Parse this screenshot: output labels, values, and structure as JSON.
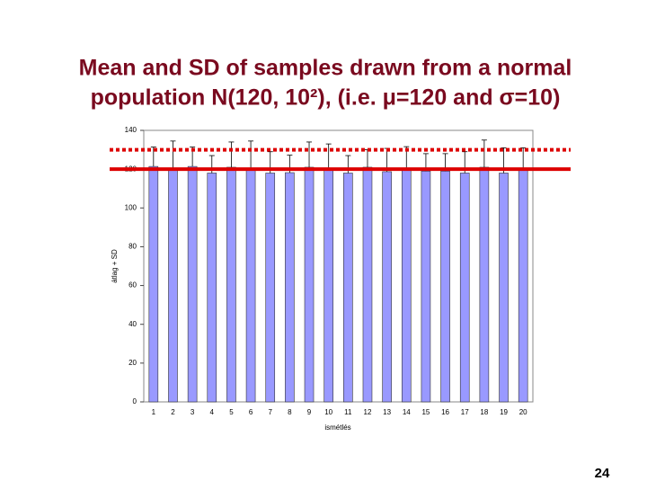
{
  "chart_data": {
    "type": "bar",
    "title_lines": [
      "Mean and SD of samples drawn from a normal",
      "population N(120, 10²), (i.e. μ=120 and σ=10)"
    ],
    "xlabel": "ismétlés",
    "ylabel": "átlag + SD",
    "categories": [
      "1",
      "2",
      "3",
      "4",
      "5",
      "6",
      "7",
      "8",
      "9",
      "10",
      "11",
      "12",
      "13",
      "14",
      "15",
      "16",
      "17",
      "18",
      "19",
      "20"
    ],
    "values": [
      121.4,
      120.5,
      121.4,
      118,
      121,
      120.5,
      118,
      118.2,
      121,
      120,
      118,
      121,
      118.7,
      119.6,
      119,
      119,
      118,
      121,
      118,
      120
    ],
    "errors": [
      10,
      14,
      10,
      9,
      13,
      14,
      11,
      9,
      13,
      13,
      9,
      9,
      12,
      12,
      9,
      9,
      11,
      14,
      13,
      11
    ],
    "color": "#9999ff",
    "ylim": [
      0,
      140
    ],
    "yticks": [
      0,
      20,
      40,
      60,
      80,
      100,
      120,
      140
    ],
    "reference_lines": [
      {
        "value": 120,
        "style": "solid",
        "color": "#dd0000"
      },
      {
        "value": 130,
        "style": "dotted",
        "color": "#dd0000"
      }
    ]
  },
  "page_number": "24"
}
